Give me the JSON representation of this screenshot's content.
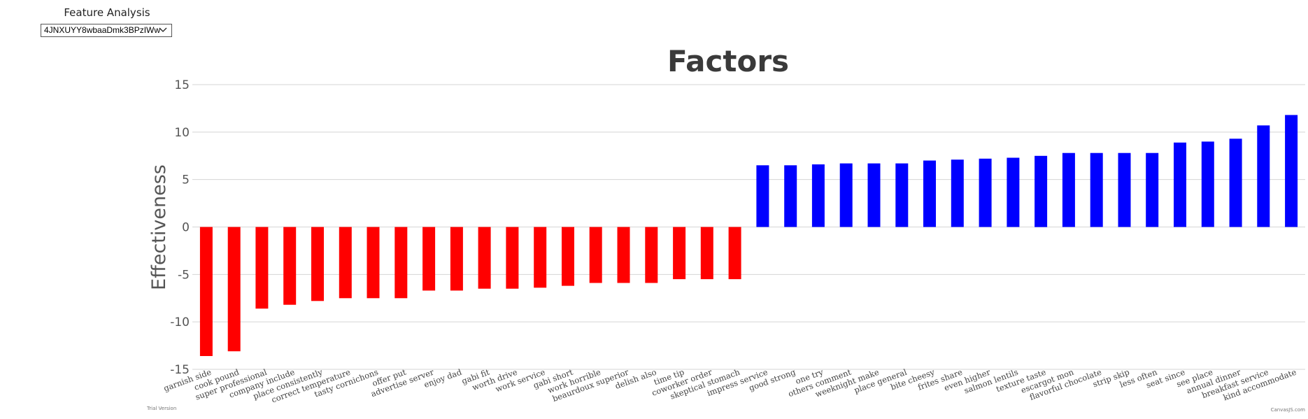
{
  "panel": {
    "title": "Feature Analysis",
    "selected_value": "4JNXUYY8wbaaDmk3BPzIWw"
  },
  "colors": {
    "negative": "#ff0000",
    "positive": "#0000ff",
    "grid": "#d4d4d4",
    "text": "#3a3a3a"
  },
  "footer": {
    "left": "Trial Version",
    "right": "CanvasJS.com"
  },
  "chart_data": {
    "type": "bar",
    "title": "Factors",
    "ylabel": "Effectiveness",
    "xlabel": "",
    "ylim": [
      -15,
      15
    ],
    "yticks": [
      -15,
      -10,
      -5,
      0,
      5,
      10,
      15
    ],
    "grid": true,
    "categories": [
      "garnish side",
      "cook pound",
      "super professional",
      "company include",
      "place consistently",
      "correct temperature",
      "tasty cornichons",
      "offer put",
      "advertise server",
      "enjoy dad",
      "gabi fit",
      "worth drive",
      "work service",
      "gabi short",
      "work horrible",
      "beaurdoux superior",
      "delish also",
      "time tip",
      "coworker order",
      "skeptical stomach",
      "impress service",
      "good strong",
      "one try",
      "others comment",
      "weeknight make",
      "place general",
      "bite cheesy",
      "frites share",
      "even higher",
      "salmon lentils",
      "texture taste",
      "escargot mon",
      "flavorful chocolate",
      "strip skip",
      "less often",
      "seat since",
      "see place",
      "annual dinner",
      "breakfast service",
      "kind accommodate"
    ],
    "values": [
      -13.6,
      -13.1,
      -8.6,
      -8.2,
      -7.8,
      -7.5,
      -7.5,
      -7.5,
      -6.7,
      -6.7,
      -6.5,
      -6.5,
      -6.4,
      -6.2,
      -5.9,
      -5.9,
      -5.9,
      -5.5,
      -5.5,
      -5.5,
      6.5,
      6.5,
      6.6,
      6.7,
      6.7,
      6.7,
      7.0,
      7.1,
      7.2,
      7.3,
      7.5,
      7.8,
      7.8,
      7.8,
      7.8,
      8.9,
      9.0,
      9.3,
      10.7,
      11.8
    ]
  }
}
